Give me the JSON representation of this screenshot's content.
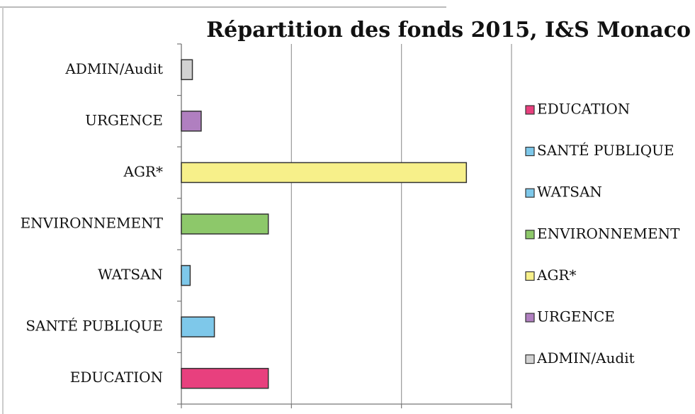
{
  "chart_data": {
    "type": "barh",
    "title": "Répartition des fonds 2015, I&S Monaco",
    "categories": [
      "EDUCATION",
      "SANTÉ PUBLIQUE",
      "WATSAN",
      "ENVIRONNEMENT",
      "AGR*",
      "URGENCE",
      "ADMIN/Audit"
    ],
    "values": [
      0.79,
      0.3,
      0.08,
      0.79,
      2.59,
      0.18,
      0.1
    ],
    "colors": [
      "#e8407e",
      "#7ec8ea",
      "#7ec8ea",
      "#8dc86a",
      "#f7f08a",
      "#b07fc0",
      "#d2d2d2"
    ],
    "xlim": [
      0,
      3
    ],
    "xticks": [
      0,
      1,
      2,
      3
    ],
    "grid": true,
    "legend": "right"
  }
}
